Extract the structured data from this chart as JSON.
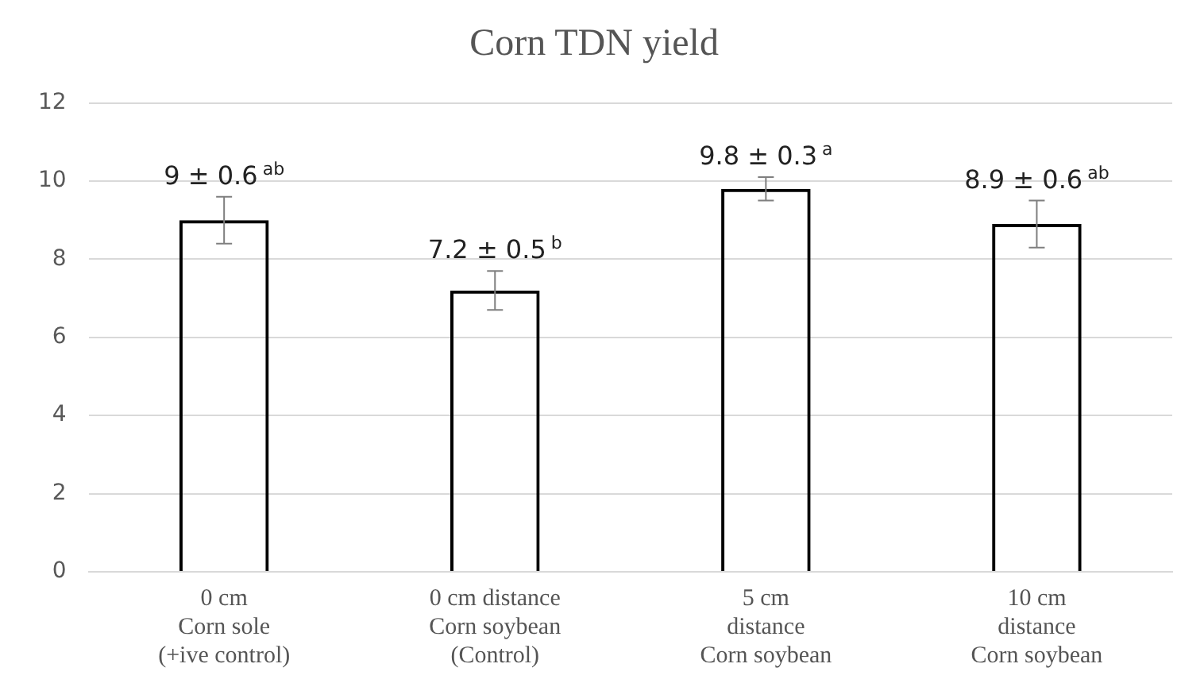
{
  "chart_data": {
    "type": "bar",
    "title": "Corn TDN yield",
    "categories": [
      "0 cm\nCorn sole\n(+ive control)",
      "0 cm distance\nCorn soybean\n(Control)",
      "5 cm\ndistance\nCorn soybean",
      "10 cm\ndistance\nCorn soybean"
    ],
    "values": [
      9,
      7.2,
      9.8,
      8.9
    ],
    "errors": [
      0.6,
      0.5,
      0.3,
      0.6
    ],
    "value_labels": [
      "9 ± 0.6$^{ab}$",
      "7.2 ± 0.5$^{b}$",
      "9.8 ± 0.3$^{a}$",
      "8.9 ± 0.6$^{ab}$"
    ],
    "color": "#000000",
    "ylim": [
      0,
      12
    ],
    "yticks": [
      0,
      2,
      4,
      6,
      8,
      10,
      12
    ],
    "grid": "y",
    "legend": false
  }
}
